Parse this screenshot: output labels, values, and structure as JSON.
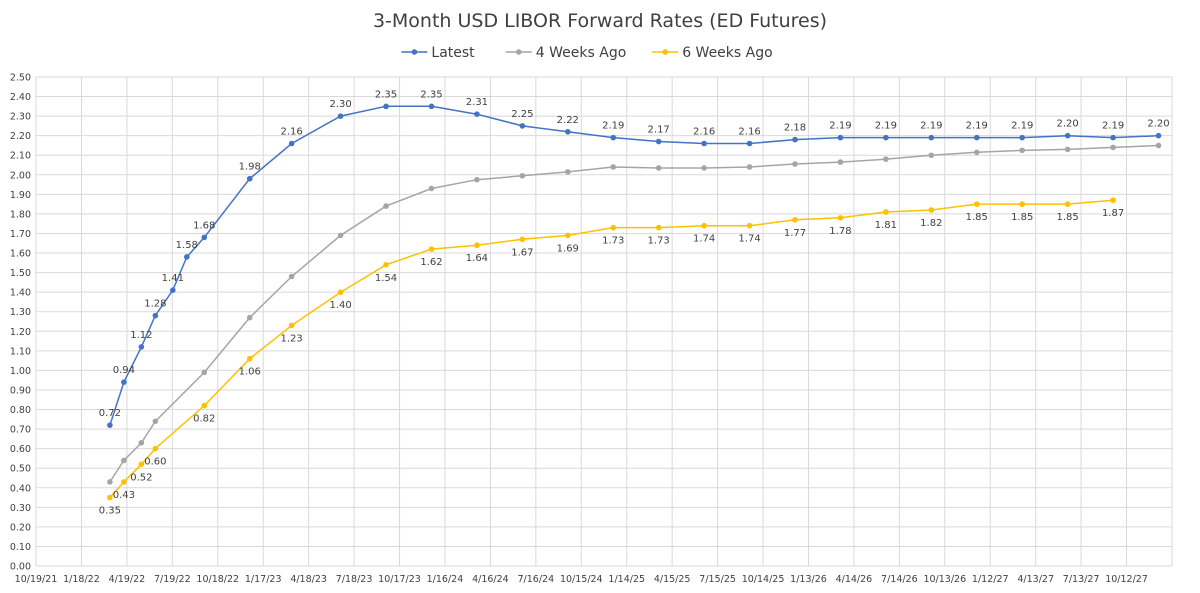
{
  "chart_data": {
    "type": "line",
    "title": "3-Month USD LIBOR Forward Rates (ED Futures)",
    "xlabel": "",
    "ylabel": "",
    "x_axis": {
      "type": "date",
      "range": [
        "2021-10-19",
        "2028-01-11"
      ],
      "tick_labels": [
        "10/19/21",
        "1/18/22",
        "4/19/22",
        "7/19/22",
        "10/18/22",
        "1/17/23",
        "4/18/23",
        "7/18/23",
        "10/17/23",
        "1/16/24",
        "4/16/24",
        "7/16/24",
        "10/15/24",
        "1/14/25",
        "4/15/25",
        "7/15/25",
        "10/14/25",
        "1/13/26",
        "4/14/26",
        "7/14/26",
        "10/13/26",
        "1/12/27",
        "4/13/27",
        "7/13/27",
        "10/12/27"
      ]
    },
    "y_axis": {
      "range": [
        0,
        2.5
      ],
      "tick_labels": [
        "0.00",
        "0.10",
        "0.20",
        "0.30",
        "0.40",
        "0.50",
        "0.60",
        "0.70",
        "0.80",
        "0.90",
        "1.00",
        "1.10",
        "1.20",
        "1.30",
        "1.40",
        "1.50",
        "1.60",
        "1.70",
        "1.80",
        "1.90",
        "2.00",
        "2.10",
        "2.20",
        "2.30",
        "2.40",
        "2.50"
      ]
    },
    "grid": true,
    "legend_position": "top",
    "series": [
      {
        "name": "Latest",
        "color": "#4472C4",
        "points": [
          {
            "x": "2022-03-16",
            "y": 0.72,
            "label": "0.72"
          },
          {
            "x": "2022-04-13",
            "y": 0.94,
            "label": "0.94"
          },
          {
            "x": "2022-05-18",
            "y": 1.12,
            "label": "1.12"
          },
          {
            "x": "2022-06-15",
            "y": 1.28,
            "label": "1.28"
          },
          {
            "x": "2022-07-20",
            "y": 1.41,
            "label": "1.41"
          },
          {
            "x": "2022-08-17",
            "y": 1.58,
            "label": "1.58"
          },
          {
            "x": "2022-09-21",
            "y": 1.68,
            "label": "1.68"
          },
          {
            "x": "2022-12-21",
            "y": 1.98,
            "label": "1.98"
          },
          {
            "x": "2023-03-15",
            "y": 2.16,
            "label": "2.16"
          },
          {
            "x": "2023-06-21",
            "y": 2.3,
            "label": "2.30"
          },
          {
            "x": "2023-09-20",
            "y": 2.35,
            "label": "2.35"
          },
          {
            "x": "2023-12-20",
            "y": 2.35,
            "label": "2.35"
          },
          {
            "x": "2024-03-20",
            "y": 2.31,
            "label": "2.31"
          },
          {
            "x": "2024-06-19",
            "y": 2.25,
            "label": "2.25"
          },
          {
            "x": "2024-09-18",
            "y": 2.22,
            "label": "2.22"
          },
          {
            "x": "2024-12-18",
            "y": 2.19,
            "label": "2.19"
          },
          {
            "x": "2025-03-19",
            "y": 2.17,
            "label": "2.17"
          },
          {
            "x": "2025-06-18",
            "y": 2.16,
            "label": "2.16"
          },
          {
            "x": "2025-09-17",
            "y": 2.16,
            "label": "2.16"
          },
          {
            "x": "2025-12-17",
            "y": 2.18,
            "label": "2.18"
          },
          {
            "x": "2026-03-18",
            "y": 2.19,
            "label": "2.19"
          },
          {
            "x": "2026-06-17",
            "y": 2.19,
            "label": "2.19"
          },
          {
            "x": "2026-09-16",
            "y": 2.19,
            "label": "2.19"
          },
          {
            "x": "2026-12-16",
            "y": 2.19,
            "label": "2.19"
          },
          {
            "x": "2027-03-17",
            "y": 2.19,
            "label": "2.19"
          },
          {
            "x": "2027-06-16",
            "y": 2.2,
            "label": "2.20"
          },
          {
            "x": "2027-09-15",
            "y": 2.19,
            "label": "2.19"
          },
          {
            "x": "2027-12-15",
            "y": 2.2,
            "label": "2.20"
          }
        ]
      },
      {
        "name": "4 Weeks Ago",
        "color": "#A5A5A5",
        "points": [
          {
            "x": "2022-03-16",
            "y": 0.43
          },
          {
            "x": "2022-04-13",
            "y": 0.54
          },
          {
            "x": "2022-05-18",
            "y": 0.63
          },
          {
            "x": "2022-06-15",
            "y": 0.74
          },
          {
            "x": "2022-09-21",
            "y": 0.99
          },
          {
            "x": "2022-12-21",
            "y": 1.27
          },
          {
            "x": "2023-03-15",
            "y": 1.48
          },
          {
            "x": "2023-06-21",
            "y": 1.69
          },
          {
            "x": "2023-09-20",
            "y": 1.84
          },
          {
            "x": "2023-12-20",
            "y": 1.93
          },
          {
            "x": "2024-03-20",
            "y": 1.975
          },
          {
            "x": "2024-06-19",
            "y": 1.995
          },
          {
            "x": "2024-09-18",
            "y": 2.015
          },
          {
            "x": "2024-12-18",
            "y": 2.04
          },
          {
            "x": "2025-03-19",
            "y": 2.035
          },
          {
            "x": "2025-06-18",
            "y": 2.035
          },
          {
            "x": "2025-09-17",
            "y": 2.04
          },
          {
            "x": "2025-12-17",
            "y": 2.055
          },
          {
            "x": "2026-03-18",
            "y": 2.065
          },
          {
            "x": "2026-06-17",
            "y": 2.08
          },
          {
            "x": "2026-09-16",
            "y": 2.1
          },
          {
            "x": "2026-12-16",
            "y": 2.115
          },
          {
            "x": "2027-03-17",
            "y": 2.125
          },
          {
            "x": "2027-06-16",
            "y": 2.13
          },
          {
            "x": "2027-09-15",
            "y": 2.14
          },
          {
            "x": "2027-12-15",
            "y": 2.15
          }
        ]
      },
      {
        "name": "6 Weeks Ago",
        "color": "#FFC000",
        "points": [
          {
            "x": "2022-03-16",
            "y": 0.35,
            "label": "0.35"
          },
          {
            "x": "2022-04-13",
            "y": 0.43,
            "label": "0.43"
          },
          {
            "x": "2022-05-18",
            "y": 0.52,
            "label": "0.52"
          },
          {
            "x": "2022-06-15",
            "y": 0.6,
            "label": "0.60"
          },
          {
            "x": "2022-09-21",
            "y": 0.82,
            "label": "0.82"
          },
          {
            "x": "2022-12-21",
            "y": 1.06,
            "label": "1.06"
          },
          {
            "x": "2023-03-15",
            "y": 1.23,
            "label": "1.23"
          },
          {
            "x": "2023-06-21",
            "y": 1.4,
            "label": "1.40"
          },
          {
            "x": "2023-09-20",
            "y": 1.54,
            "label": "1.54"
          },
          {
            "x": "2023-12-20",
            "y": 1.62,
            "label": "1.62"
          },
          {
            "x": "2024-03-20",
            "y": 1.64,
            "label": "1.64"
          },
          {
            "x": "2024-06-19",
            "y": 1.67,
            "label": "1.67"
          },
          {
            "x": "2024-09-18",
            "y": 1.69,
            "label": "1.69"
          },
          {
            "x": "2024-12-18",
            "y": 1.73,
            "label": "1.73"
          },
          {
            "x": "2025-03-19",
            "y": 1.73,
            "label": "1.73"
          },
          {
            "x": "2025-06-18",
            "y": 1.74,
            "label": "1.74"
          },
          {
            "x": "2025-09-17",
            "y": 1.74,
            "label": "1.74"
          },
          {
            "x": "2025-12-17",
            "y": 1.77,
            "label": "1.77"
          },
          {
            "x": "2026-03-18",
            "y": 1.78,
            "label": "1.78"
          },
          {
            "x": "2026-06-17",
            "y": 1.81,
            "label": "1.81"
          },
          {
            "x": "2026-09-16",
            "y": 1.82,
            "label": "1.82"
          },
          {
            "x": "2026-12-16",
            "y": 1.85,
            "label": "1.85"
          },
          {
            "x": "2027-03-17",
            "y": 1.85,
            "label": "1.85"
          },
          {
            "x": "2027-06-16",
            "y": 1.85,
            "label": "1.85"
          },
          {
            "x": "2027-09-15",
            "y": 1.87,
            "label": "1.87"
          }
        ]
      }
    ]
  }
}
